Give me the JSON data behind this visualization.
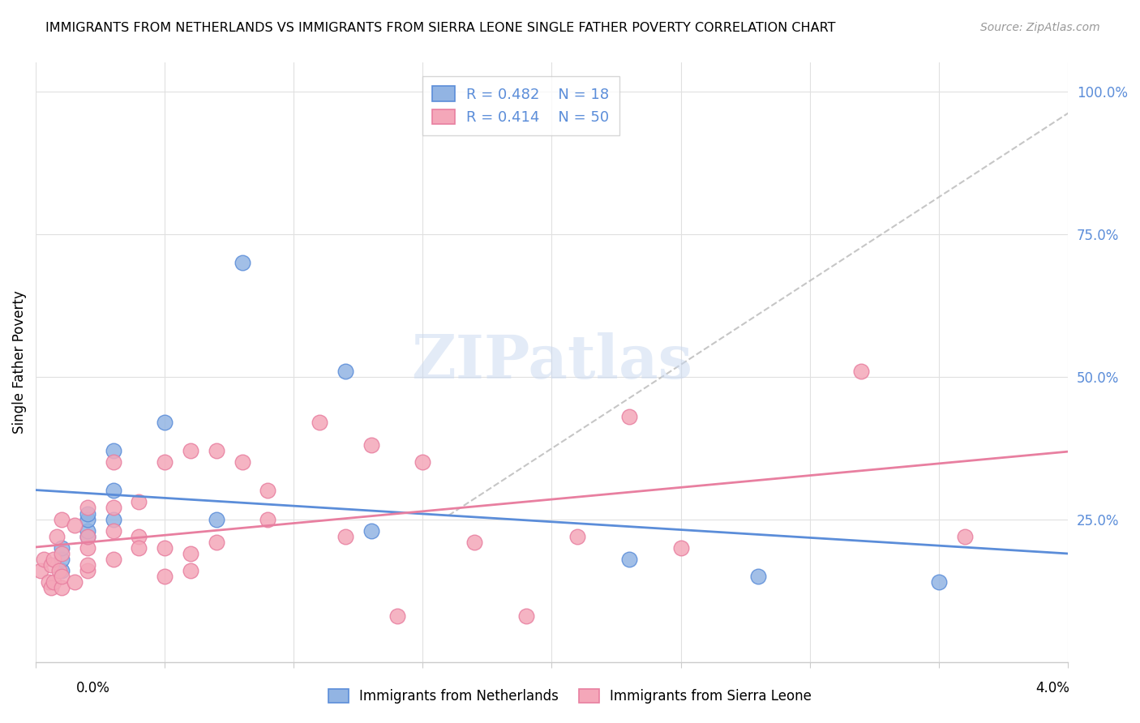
{
  "title": "IMMIGRANTS FROM NETHERLANDS VS IMMIGRANTS FROM SIERRA LEONE SINGLE FATHER POVERTY CORRELATION CHART",
  "source": "Source: ZipAtlas.com",
  "ylabel": "Single Father Poverty",
  "xlim": [
    0.0,
    0.04
  ],
  "ylim": [
    0.0,
    1.05
  ],
  "legend_r1": "0.482",
  "legend_n1": "18",
  "legend_r2": "0.414",
  "legend_n2": "50",
  "color_netherlands": "#92b4e3",
  "color_sierra_leone": "#f4a7b9",
  "color_netherlands_dark": "#5b8dd9",
  "color_sierra_leone_dark": "#e87fa0",
  "color_trendline_netherlands": "#5b8dd9",
  "color_trendline_sierra_leone": "#e87fa0",
  "watermark": "ZIPatlas",
  "netherlands_x": [
    0.001,
    0.001,
    0.001,
    0.002,
    0.002,
    0.002,
    0.002,
    0.003,
    0.003,
    0.003,
    0.005,
    0.007,
    0.008,
    0.012,
    0.013,
    0.023,
    0.028,
    0.035
  ],
  "netherlands_y": [
    0.16,
    0.18,
    0.2,
    0.22,
    0.23,
    0.25,
    0.26,
    0.25,
    0.3,
    0.37,
    0.42,
    0.25,
    0.7,
    0.51,
    0.23,
    0.18,
    0.15,
    0.14
  ],
  "sierra_leone_x": [
    0.0002,
    0.0003,
    0.0005,
    0.0006,
    0.0006,
    0.0007,
    0.0007,
    0.0008,
    0.0009,
    0.001,
    0.001,
    0.001,
    0.001,
    0.0015,
    0.0015,
    0.002,
    0.002,
    0.002,
    0.002,
    0.002,
    0.003,
    0.003,
    0.003,
    0.003,
    0.004,
    0.004,
    0.004,
    0.005,
    0.005,
    0.005,
    0.006,
    0.006,
    0.006,
    0.007,
    0.007,
    0.008,
    0.009,
    0.009,
    0.011,
    0.012,
    0.013,
    0.014,
    0.015,
    0.017,
    0.019,
    0.021,
    0.023,
    0.025,
    0.032,
    0.036
  ],
  "sierra_leone_y": [
    0.16,
    0.18,
    0.14,
    0.13,
    0.17,
    0.14,
    0.18,
    0.22,
    0.16,
    0.13,
    0.15,
    0.19,
    0.25,
    0.14,
    0.24,
    0.16,
    0.17,
    0.2,
    0.22,
    0.27,
    0.18,
    0.23,
    0.27,
    0.35,
    0.22,
    0.2,
    0.28,
    0.2,
    0.15,
    0.35,
    0.16,
    0.19,
    0.37,
    0.21,
    0.37,
    0.35,
    0.25,
    0.3,
    0.42,
    0.22,
    0.38,
    0.08,
    0.35,
    0.21,
    0.08,
    0.22,
    0.43,
    0.2,
    0.51,
    0.22
  ],
  "legend_bottom_1": "Immigrants from Netherlands",
  "legend_bottom_2": "Immigrants from Sierra Leone"
}
